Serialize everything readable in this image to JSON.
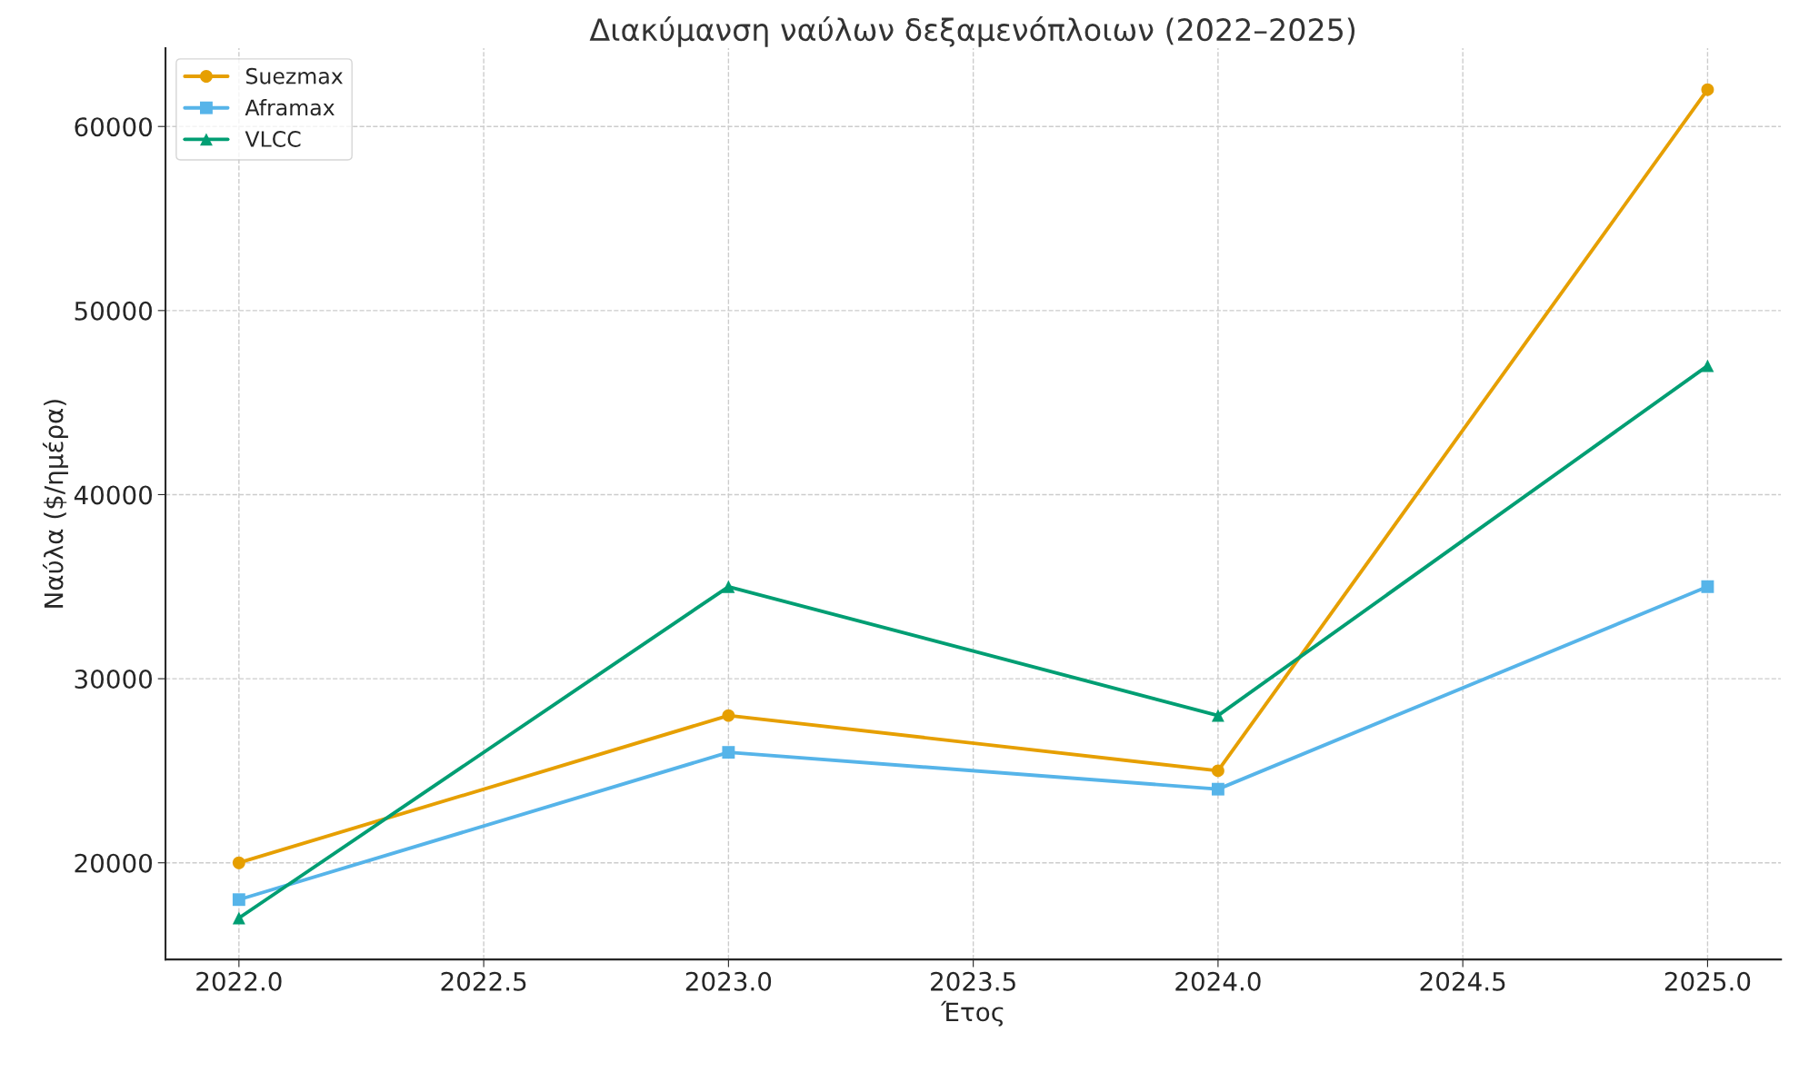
{
  "chart_data": {
    "type": "line",
    "title": "Διακύμανση ναύλων δεξαμενόπλοιων (2022–2025)",
    "xlabel": "Έτος",
    "ylabel": "Ναύλα ($/ημέρα)",
    "x": [
      2022,
      2023,
      2024,
      2025
    ],
    "series": [
      {
        "name": "Suezmax",
        "color": "#e69f00",
        "marker": "circle",
        "values": [
          20000,
          28000,
          25000,
          62000
        ]
      },
      {
        "name": "Aframax",
        "color": "#56b4e9",
        "marker": "square",
        "values": [
          18000,
          26000,
          24000,
          35000
        ]
      },
      {
        "name": "VLCC",
        "color": "#009e73",
        "marker": "triangle",
        "values": [
          17000,
          35000,
          28000,
          47000
        ]
      }
    ],
    "xlim": [
      2021.85,
      2025.15
    ],
    "ylim": [
      14750,
      64250
    ],
    "xticks": [
      {
        "value": 2022.0,
        "label": "2022.0"
      },
      {
        "value": 2022.5,
        "label": "2022.5"
      },
      {
        "value": 2023.0,
        "label": "2023.0"
      },
      {
        "value": 2023.5,
        "label": "2023.5"
      },
      {
        "value": 2024.0,
        "label": "2024.0"
      },
      {
        "value": 2024.5,
        "label": "2024.5"
      },
      {
        "value": 2025.0,
        "label": "2025.0"
      }
    ],
    "yticks": [
      20000,
      30000,
      40000,
      50000,
      60000
    ],
    "grid": true,
    "legend": "top left",
    "line_style": "solid"
  }
}
